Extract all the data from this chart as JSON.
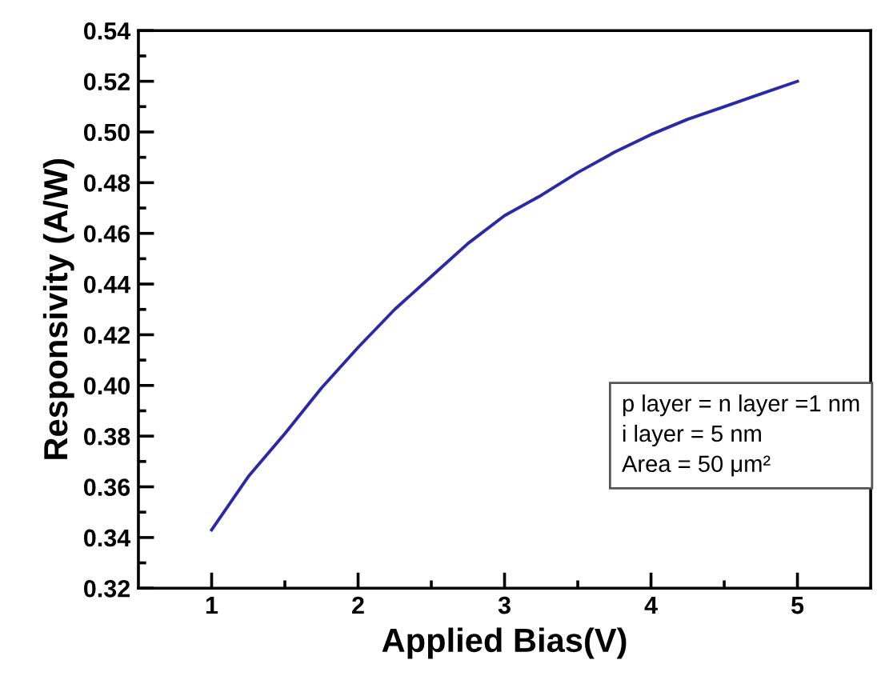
{
  "chart_data": {
    "type": "line",
    "xlabel": "Applied Bias(V)",
    "ylabel": "Responsivity (A/W)",
    "x": [
      1,
      1.25,
      1.5,
      1.75,
      2,
      2.25,
      2.5,
      2.75,
      3,
      3.25,
      3.5,
      3.75,
      4,
      4.25,
      4.5,
      4.75,
      5
    ],
    "series": [
      {
        "color": "#2a2aa8",
        "values": [
          0.343,
          0.364,
          0.381,
          0.399,
          0.415,
          0.43,
          0.443,
          0.456,
          0.467,
          0.475,
          0.484,
          0.492,
          0.499,
          0.505,
          0.51,
          0.515,
          0.52
        ]
      }
    ],
    "xlim": [
      0.5,
      5.5
    ],
    "ylim": [
      0.32,
      0.54
    ],
    "xticks": [
      1,
      {
        "value": 1.5,
        "label": null
      },
      2,
      {
        "value": 2.5,
        "label": null
      },
      3,
      {
        "value": 3.5,
        "label": null
      },
      4,
      {
        "value": 4.5,
        "label": null
      },
      5
    ],
    "yticks": [
      {
        "value": 0.32,
        "label": "0.32"
      },
      {
        "value": 0.33,
        "label": null
      },
      {
        "value": 0.34,
        "label": "0.34"
      },
      {
        "value": 0.35,
        "label": null
      },
      {
        "value": 0.36,
        "label": "0.36"
      },
      {
        "value": 0.37,
        "label": null
      },
      {
        "value": 0.38,
        "label": "0.38"
      },
      {
        "value": 0.39,
        "label": null
      },
      {
        "value": 0.4,
        "label": "0.40"
      },
      {
        "value": 0.41,
        "label": null
      },
      {
        "value": 0.42,
        "label": "0.42"
      },
      {
        "value": 0.43,
        "label": null
      },
      {
        "value": 0.44,
        "label": "0.44"
      },
      {
        "value": 0.45,
        "label": null
      },
      {
        "value": 0.46,
        "label": "0.46"
      },
      {
        "value": 0.47,
        "label": null
      },
      {
        "value": 0.48,
        "label": "0.48"
      },
      {
        "value": 0.49,
        "label": null
      },
      {
        "value": 0.5,
        "label": "0.50"
      },
      {
        "value": 0.51,
        "label": null
      },
      {
        "value": 0.52,
        "label": "0.52"
      },
      {
        "value": 0.53,
        "label": null
      },
      {
        "value": 0.54,
        "label": "0.54"
      }
    ],
    "annotations": [
      "p layer = n layer =1 nm\ni layer = 5 nm\nArea = 50 μm²"
    ],
    "grid": false,
    "legend": false,
    "marker": "none",
    "line_style": "solid"
  }
}
